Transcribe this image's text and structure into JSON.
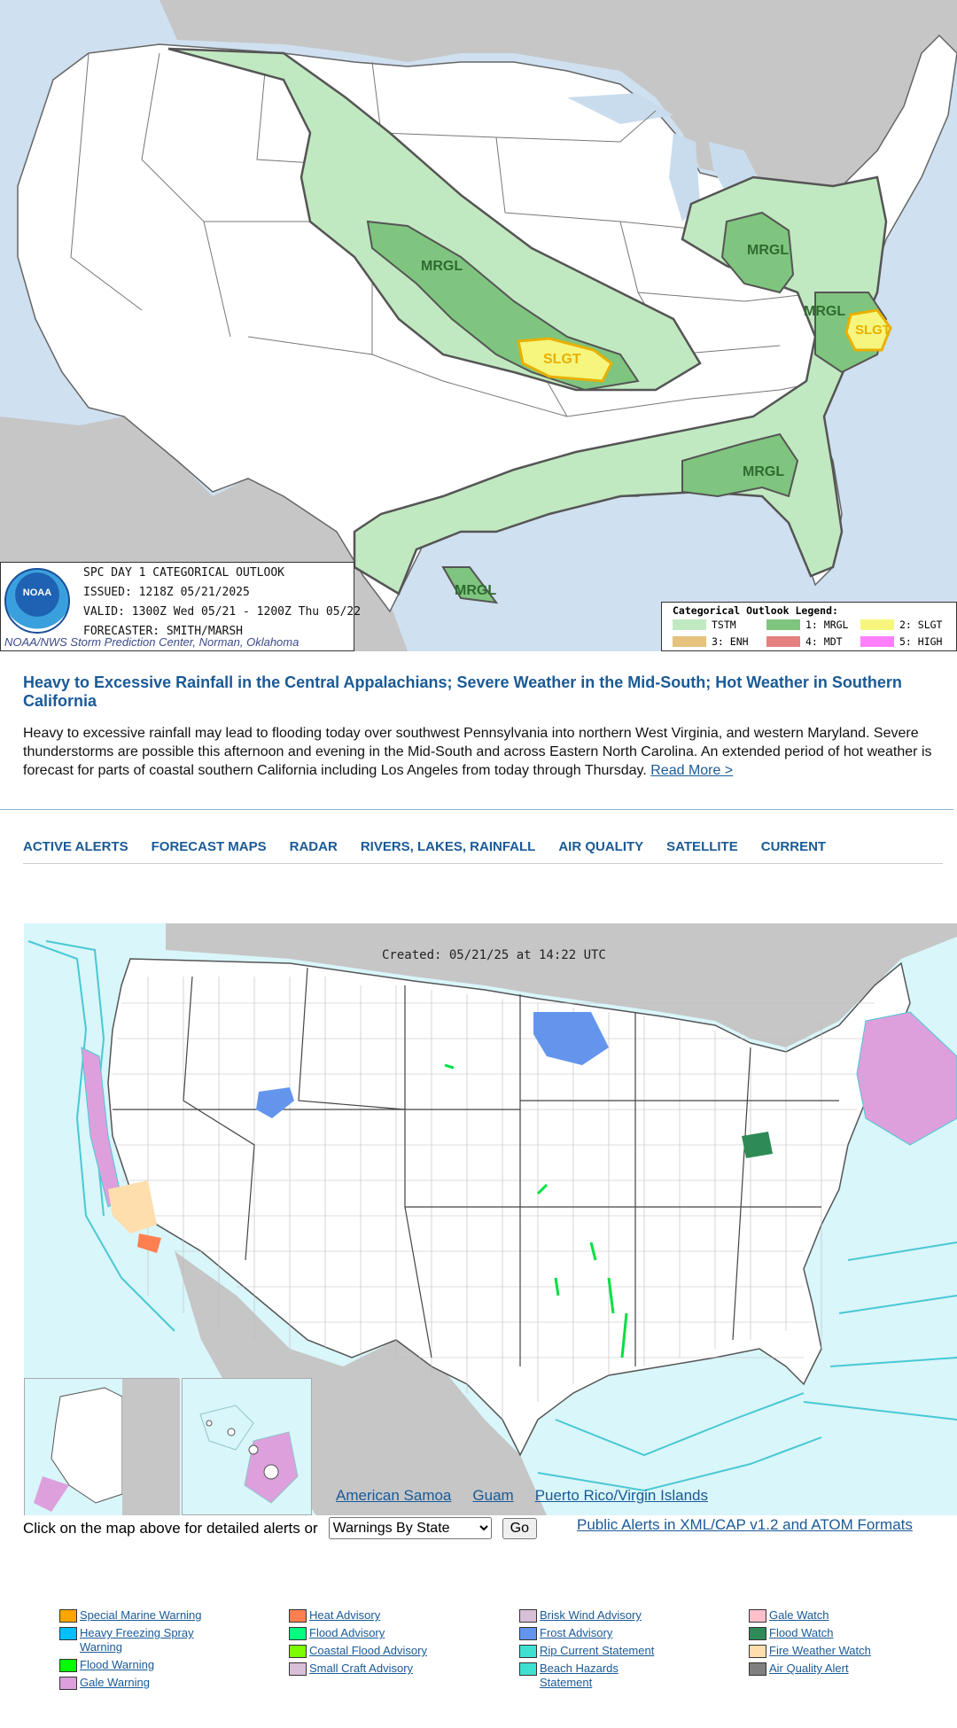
{
  "spc_outlook": {
    "logo_text": "NOAA",
    "title": "SPC DAY 1 CATEGORICAL OUTLOOK",
    "issued": "ISSUED: 1218Z 05/21/2025",
    "valid": "VALID: 1300Z Wed 05/21 - 1200Z Thu 05/22",
    "forecaster": "FORECASTER: SMITH/MARSH",
    "credit": "NOAA/NWS Storm Prediction Center, Norman, Oklahoma",
    "area_labels": {
      "mrgl_plains": "MRGL",
      "slgt_plains": "SLGT",
      "mrgl_ohio": "MRGL",
      "mrgl_carolina": "MRGL",
      "slgt_carolina": "SLGT",
      "mrgl_southeast": "MRGL",
      "mrgl_texas": "MRGL"
    },
    "legend": {
      "title": "Categorical Outlook Legend:",
      "items": [
        {
          "label": "TSTM",
          "color": "#c1e9c1"
        },
        {
          "label": "1: MRGL",
          "color": "#7fc57f"
        },
        {
          "label": "2: SLGT",
          "color": "#f6f67f"
        },
        {
          "label": "3: ENH",
          "color": "#e6c27f"
        },
        {
          "label": "4: MDT",
          "color": "#e67f7f"
        },
        {
          "label": "5: HIGH",
          "color": "#ff7fff"
        }
      ]
    }
  },
  "headline": {
    "title": "Heavy to Excessive Rainfall in the Central Appalachians; Severe Weather in the Mid-South; Hot Weather in Southern California",
    "summary": "Heavy to excessive rainfall may lead to flooding today over southwest Pennsylvania into northern West Virginia, and western Maryland. Severe thunderstorms are possible this afternoon and evening in the Mid-South and across Eastern North Carolina. An extended period of hot weather is forecast for parts of coastal southern California including Los Angeles from today through Thursday.",
    "read_more": "Read More >"
  },
  "nav": [
    "ACTIVE ALERTS",
    "FORECAST MAPS",
    "RADAR",
    "RIVERS, LAKES, RAINFALL",
    "AIR QUALITY",
    "SATELLITE",
    "CURRENT"
  ],
  "alerts_map": {
    "created": "Created: 05/21/25 at 14:22 UTC",
    "territories": [
      "American Samoa",
      "Guam",
      "Puerto Rico/Virgin Islands"
    ]
  },
  "controls": {
    "prompt": "Click on the map above for detailed alerts or",
    "select_value": "Warnings By State",
    "go_label": "Go",
    "xml_link": "Public Alerts in XML/CAP v1.2 and ATOM Formats"
  },
  "alert_legend": {
    "columns": [
      [
        {
          "label": "Special Marine Warning",
          "color": "#ffa500"
        },
        {
          "label": "Heavy Freezing Spray Warning",
          "color": "#00bfff"
        },
        {
          "label": "Flood Warning",
          "color": "#00ff00"
        },
        {
          "label": "Gale Warning",
          "color": "#dda0dd"
        }
      ],
      [
        {
          "label": "Heat Advisory",
          "color": "#ff7f50"
        },
        {
          "label": "Flood Advisory",
          "color": "#00ff7f"
        },
        {
          "label": "Coastal Flood Advisory",
          "color": "#7cfc00"
        },
        {
          "label": "Small Craft Advisory",
          "color": "#d8bfd8"
        }
      ],
      [
        {
          "label": "Brisk Wind Advisory",
          "color": "#d8bfd8"
        },
        {
          "label": "Frost Advisory",
          "color": "#6495ed"
        },
        {
          "label": "Rip Current Statement",
          "color": "#40e0d0"
        },
        {
          "label": "Beach Hazards Statement",
          "color": "#40e0d0"
        }
      ],
      [
        {
          "label": "Gale Watch",
          "color": "#ffc0cb"
        },
        {
          "label": "Flood Watch",
          "color": "#2e8b57"
        },
        {
          "label": "Fire Weather Watch",
          "color": "#ffdead"
        },
        {
          "label": "Air Quality Alert",
          "color": "#808080"
        }
      ]
    ]
  }
}
